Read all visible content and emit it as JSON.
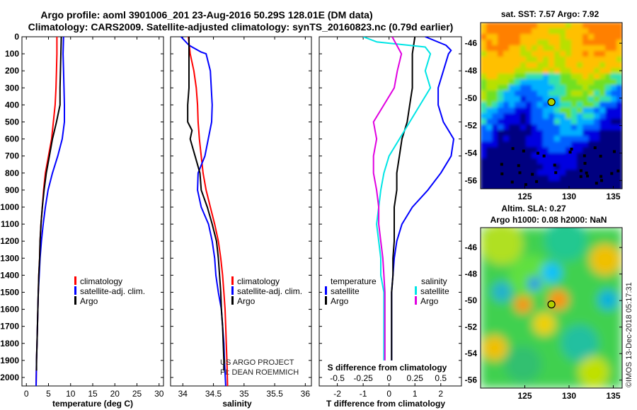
{
  "title_line1": "Argo profile: aoml 3901006_201 23-Aug-2016 50.29S 128.01E (DM data)",
  "title_line2": "Climatology: CARS2009. Satellite-adjusted climatology: synTS_20160823.nc (0.79d earlier)",
  "credit_line1": "US ARGO PROJECT",
  "credit_line2": "PI: DEAN ROEMMICH",
  "timestamp": "©IMOS 13-Dec-2018 05:17:31",
  "colors": {
    "climatology": "#ff0000",
    "satellite": "#0000ff",
    "argo": "#000000",
    "sat_diff_s": "#00e5e5",
    "argo_diff_s": "#e000e0"
  },
  "chart_data": [
    {
      "type": "line",
      "xlabel": "temperature (deg C)",
      "xlim": [
        -1,
        31
      ],
      "xticks": [
        "0",
        "5",
        "10",
        "15",
        "20",
        "25",
        "30"
      ],
      "ylim": [
        0,
        2050
      ],
      "yticks": [
        "0",
        "100",
        "200",
        "300",
        "400",
        "500",
        "600",
        "700",
        "800",
        "900",
        "1000",
        "1100",
        "1200",
        "1300",
        "1400",
        "1500",
        "1600",
        "1700",
        "1800",
        "1900",
        "2000"
      ],
      "grid": false,
      "legend": {
        "position": "lower-right",
        "entries": [
          "climatology",
          "satellite-adj. clim.",
          "Argo"
        ]
      },
      "series": [
        {
          "name": "climatology",
          "points": [
            [
              6.9,
              0
            ],
            [
              6.9,
              100
            ],
            [
              6.8,
              200
            ],
            [
              6.7,
              300
            ],
            [
              6.5,
              400
            ],
            [
              6.1,
              500
            ],
            [
              5.7,
              600
            ],
            [
              5.0,
              700
            ],
            [
              4.3,
              800
            ],
            [
              3.9,
              900
            ],
            [
              3.6,
              1000
            ],
            [
              3.3,
              1100
            ],
            [
              3.1,
              1200
            ],
            [
              3.0,
              1300
            ],
            [
              2.8,
              1400
            ],
            [
              2.7,
              1500
            ],
            [
              2.6,
              1600
            ],
            [
              2.5,
              1700
            ],
            [
              2.4,
              1800
            ],
            [
              2.3,
              1900
            ],
            [
              2.2,
              2050
            ]
          ]
        },
        {
          "name": "satellite-adj. clim.",
          "points": [
            [
              8.4,
              0
            ],
            [
              8.3,
              100
            ],
            [
              8.4,
              200
            ],
            [
              8.5,
              300
            ],
            [
              8.6,
              400
            ],
            [
              8.6,
              500
            ],
            [
              8.1,
              600
            ],
            [
              7.1,
              700
            ],
            [
              5.9,
              800
            ],
            [
              4.9,
              900
            ],
            [
              4.3,
              1000
            ],
            [
              3.8,
              1100
            ],
            [
              3.4,
              1200
            ],
            [
              3.1,
              1300
            ],
            [
              2.9,
              1400
            ],
            [
              2.7,
              1500
            ],
            [
              2.6,
              1600
            ],
            [
              2.5,
              1700
            ],
            [
              2.4,
              1800
            ],
            [
              2.3,
              1900
            ],
            [
              2.2,
              2050
            ]
          ]
        },
        {
          "name": "Argo",
          "points": [
            [
              7.9,
              0
            ],
            [
              7.8,
              100
            ],
            [
              7.7,
              200
            ],
            [
              7.6,
              300
            ],
            [
              7.6,
              400
            ],
            [
              6.8,
              500
            ],
            [
              5.9,
              600
            ],
            [
              5.2,
              700
            ],
            [
              4.5,
              800
            ],
            [
              4.0,
              900
            ],
            [
              3.6,
              1000
            ],
            [
              3.3,
              1100
            ],
            [
              3.1,
              1200
            ],
            [
              3.0,
              1300
            ],
            [
              2.8,
              1400
            ],
            [
              2.7,
              1500
            ],
            [
              2.6,
              1600
            ],
            [
              2.5,
              1700
            ],
            [
              2.4,
              1800
            ],
            [
              2.3,
              1900
            ],
            [
              2.3,
              1960
            ]
          ]
        }
      ]
    },
    {
      "type": "line",
      "xlabel": "salinity",
      "xlim": [
        33.8,
        36.1
      ],
      "xticks": [
        "34",
        "34.5",
        "35",
        "35.5",
        "36"
      ],
      "ylim": [
        0,
        2050
      ],
      "grid": false,
      "legend": {
        "position": "lower-right",
        "entries": [
          "climatology",
          "satellite-adj. clim.",
          "Argo"
        ]
      },
      "series": [
        {
          "name": "climatology",
          "points": [
            [
              34.09,
              0
            ],
            [
              34.12,
              100
            ],
            [
              34.18,
              200
            ],
            [
              34.22,
              300
            ],
            [
              34.24,
              400
            ],
            [
              34.25,
              500
            ],
            [
              34.27,
              600
            ],
            [
              34.3,
              700
            ],
            [
              34.33,
              800
            ],
            [
              34.38,
              900
            ],
            [
              34.45,
              1000
            ],
            [
              34.52,
              1100
            ],
            [
              34.58,
              1200
            ],
            [
              34.62,
              1300
            ],
            [
              34.65,
              1400
            ],
            [
              34.67,
              1500
            ],
            [
              34.69,
              1600
            ],
            [
              34.7,
              1700
            ],
            [
              34.71,
              1800
            ],
            [
              34.72,
              1900
            ],
            [
              34.73,
              2050
            ]
          ]
        },
        {
          "name": "satellite-adj. clim.",
          "points": [
            [
              33.97,
              0
            ],
            [
              34.1,
              50
            ],
            [
              34.3,
              90
            ],
            [
              34.38,
              100
            ],
            [
              34.45,
              200
            ],
            [
              34.48,
              400
            ],
            [
              34.47,
              500
            ],
            [
              34.36,
              700
            ],
            [
              34.25,
              800
            ],
            [
              34.24,
              900
            ],
            [
              34.3,
              1000
            ],
            [
              34.42,
              1100
            ],
            [
              34.48,
              1200
            ],
            [
              34.52,
              1300
            ],
            [
              34.54,
              1400
            ],
            [
              34.58,
              1500
            ],
            [
              34.63,
              1600
            ],
            [
              34.65,
              1700
            ],
            [
              34.67,
              1800
            ],
            [
              34.68,
              1900
            ],
            [
              34.7,
              2050
            ]
          ]
        },
        {
          "name": "Argo",
          "points": [
            [
              34.1,
              0
            ],
            [
              34.1,
              100
            ],
            [
              34.1,
              200
            ],
            [
              34.1,
              300
            ],
            [
              34.08,
              400
            ],
            [
              34.08,
              500
            ],
            [
              34.15,
              550
            ],
            [
              34.12,
              600
            ],
            [
              34.2,
              700
            ],
            [
              34.28,
              800
            ],
            [
              34.3,
              900
            ],
            [
              34.4,
              1000
            ],
            [
              34.48,
              1100
            ],
            [
              34.55,
              1200
            ],
            [
              34.58,
              1300
            ],
            [
              34.6,
              1400
            ],
            [
              34.62,
              1500
            ],
            [
              34.63,
              1600
            ],
            [
              34.65,
              1700
            ],
            [
              34.66,
              1800
            ],
            [
              34.67,
              1900
            ],
            [
              34.67,
              1960
            ]
          ]
        }
      ]
    },
    {
      "type": "line",
      "xlabel": "T difference from climatology",
      "xlim": [
        -2.7,
        2.8
      ],
      "xticks": [
        "-2",
        "-1",
        "0",
        "1",
        "2"
      ],
      "second_axis_label": "S difference from climatology",
      "second_axis_ticks": [
        "-0.5",
        "-0.25",
        "0",
        "0.25",
        "0.5"
      ],
      "ylim": [
        0,
        2050
      ],
      "grid": false,
      "legend": {
        "position": "lower-left",
        "temperature_header": "temperature",
        "salinity_header": "salinity",
        "entries": [
          "satellite",
          "Argo",
          "satellite",
          "Argo"
        ]
      },
      "series": [
        {
          "name": "satellite",
          "quantity": "temperature",
          "points": [
            [
              1.4,
              0
            ],
            [
              2.2,
              50
            ],
            [
              2.4,
              80
            ],
            [
              2.3,
              100
            ],
            [
              2.1,
              200
            ],
            [
              1.9,
              300
            ],
            [
              1.9,
              400
            ],
            [
              2.1,
              500
            ],
            [
              2.5,
              600
            ],
            [
              2.4,
              700
            ],
            [
              2.0,
              800
            ],
            [
              1.5,
              900
            ],
            [
              0.9,
              1000
            ],
            [
              0.5,
              1100
            ],
            [
              0.3,
              1200
            ],
            [
              0.2,
              1300
            ],
            [
              0.15,
              1400
            ],
            [
              0.1,
              1500
            ],
            [
              0.1,
              1600
            ],
            [
              0.1,
              1700
            ],
            [
              0.1,
              1800
            ],
            [
              0.1,
              1900
            ]
          ]
        },
        {
          "name": "Argo",
          "quantity": "temperature",
          "points": [
            [
              1.0,
              0
            ],
            [
              0.9,
              100
            ],
            [
              0.9,
              200
            ],
            [
              0.9,
              300
            ],
            [
              0.8,
              400
            ],
            [
              0.7,
              500
            ],
            [
              0.5,
              600
            ],
            [
              0.4,
              700
            ],
            [
              0.3,
              800
            ],
            [
              0.3,
              900
            ],
            [
              0.2,
              1000
            ],
            [
              0.2,
              1100
            ],
            [
              0.2,
              1200
            ],
            [
              0.15,
              1300
            ],
            [
              0.15,
              1400
            ],
            [
              0.1,
              1500
            ],
            [
              0.1,
              1600
            ],
            [
              0.1,
              1700
            ],
            [
              0.1,
              1800
            ],
            [
              0.1,
              1900
            ]
          ]
        },
        {
          "name": "satellite",
          "quantity": "salinity",
          "points": [
            [
              -0.25,
              0
            ],
            [
              -0.12,
              30
            ],
            [
              0.35,
              60
            ],
            [
              0.4,
              100
            ],
            [
              0.35,
              200
            ],
            [
              0.4,
              300
            ],
            [
              0.3,
              400
            ],
            [
              0.2,
              500
            ],
            [
              0.1,
              600
            ],
            [
              0.0,
              700
            ],
            [
              -0.05,
              800
            ],
            [
              -0.08,
              900
            ],
            [
              -0.1,
              1000
            ],
            [
              -0.12,
              1100
            ],
            [
              -0.1,
              1200
            ],
            [
              -0.08,
              1300
            ],
            [
              -0.08,
              1400
            ],
            [
              -0.05,
              1500
            ],
            [
              -0.05,
              1600
            ],
            [
              -0.05,
              1700
            ],
            [
              -0.05,
              1800
            ],
            [
              -0.05,
              1900
            ]
          ]
        },
        {
          "name": "Argo",
          "quantity": "salinity",
          "points": [
            [
              0.03,
              0
            ],
            [
              0.12,
              100
            ],
            [
              0.08,
              200
            ],
            [
              0.05,
              300
            ],
            [
              -0.05,
              400
            ],
            [
              -0.15,
              500
            ],
            [
              -0.12,
              600
            ],
            [
              -0.15,
              700
            ],
            [
              -0.15,
              800
            ],
            [
              -0.12,
              900
            ],
            [
              -0.1,
              1000
            ],
            [
              -0.1,
              1100
            ],
            [
              -0.08,
              1200
            ],
            [
              -0.06,
              1300
            ],
            [
              -0.05,
              1400
            ],
            [
              -0.04,
              1500
            ],
            [
              -0.04,
              1600
            ],
            [
              -0.04,
              1700
            ],
            [
              -0.04,
              1800
            ],
            [
              -0.04,
              1900
            ]
          ]
        }
      ]
    },
    {
      "type": "heatmap",
      "title": "sat. SST: 7.57 Argo: 7.92",
      "xlim": [
        120,
        136
      ],
      "ylim": [
        -56.6,
        -44.5
      ],
      "xticks": [
        "125",
        "130",
        "135"
      ],
      "yticks": [
        "-46",
        "-48",
        "-50",
        "-52",
        "-54",
        "-56"
      ],
      "profile_marker": {
        "lon": 128.01,
        "lat": -50.29
      }
    },
    {
      "type": "heatmap",
      "title": "Altim. SLA: 0.27",
      "subtitle": "Argo h1000: 0.08 h2000: NaN",
      "xlim": [
        120,
        136
      ],
      "ylim": [
        -56.6,
        -44.5
      ],
      "xticks": [
        "125",
        "130",
        "135"
      ],
      "yticks": [
        "-46",
        "-48",
        "-50",
        "-52",
        "-54",
        "-56"
      ],
      "profile_marker": {
        "lon": 128.01,
        "lat": -50.29
      }
    }
  ]
}
